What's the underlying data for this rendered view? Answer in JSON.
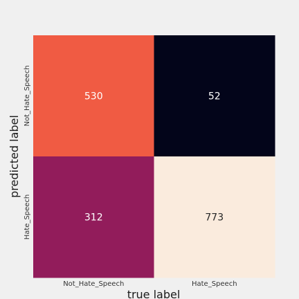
{
  "chart_data": {
    "type": "heatmap",
    "title": "",
    "xlabel": "true label",
    "ylabel": "predicted label",
    "x_categories": [
      "Not_Hate_Speech",
      "Hate_Speech"
    ],
    "y_categories": [
      "Not_Hate_Speech",
      "Hate_Speech"
    ],
    "values": [
      [
        530,
        52
      ],
      [
        312,
        773
      ]
    ],
    "colors": [
      [
        "#f05b43",
        "#03051a"
      ],
      [
        "#921c5b",
        "#faebdd"
      ]
    ],
    "text_colors": [
      [
        "#ffffff",
        "#ffffff"
      ],
      [
        "#ffffff",
        "#262626"
      ]
    ],
    "colorbar": false,
    "grid": false
  }
}
